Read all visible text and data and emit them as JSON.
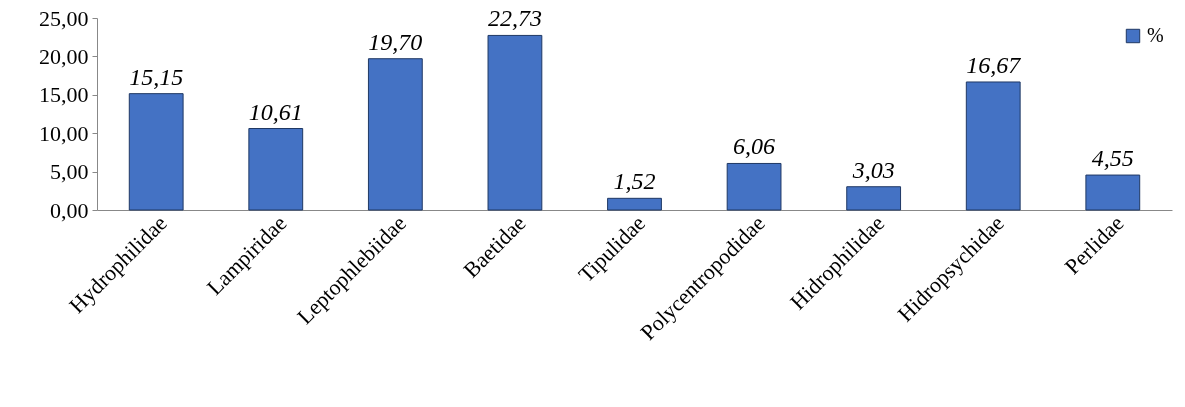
{
  "chart_data": {
    "type": "bar",
    "categories": [
      "Hydrophilidae",
      "Lampiridae",
      "Leptophlebiidae",
      "Baetidae",
      "Tipulidae",
      "Polycentropodidae",
      "Hidrophilidae",
      "Hidropsychidae",
      "Perlidae"
    ],
    "series": [
      {
        "name": "%",
        "color": "#4472c4",
        "values": [
          15.15,
          10.61,
          19.7,
          22.73,
          1.52,
          6.06,
          3.03,
          16.67,
          4.55
        ],
        "value_labels": [
          "15,15",
          "10,61",
          "19,70",
          "22,73",
          "1,52",
          "6,06",
          "3,03",
          "16,67",
          "4,55"
        ]
      }
    ],
    "ylim": [
      0,
      25
    ],
    "yticks": [
      {
        "value": 0,
        "label": "0,00"
      },
      {
        "value": 5,
        "label": "5,00"
      },
      {
        "value": 10,
        "label": "10,00"
      },
      {
        "value": 15,
        "label": "15,00"
      },
      {
        "value": 20,
        "label": "20,00"
      },
      {
        "value": 25,
        "label": "25,00"
      }
    ],
    "grid": false,
    "legend": "top right"
  }
}
